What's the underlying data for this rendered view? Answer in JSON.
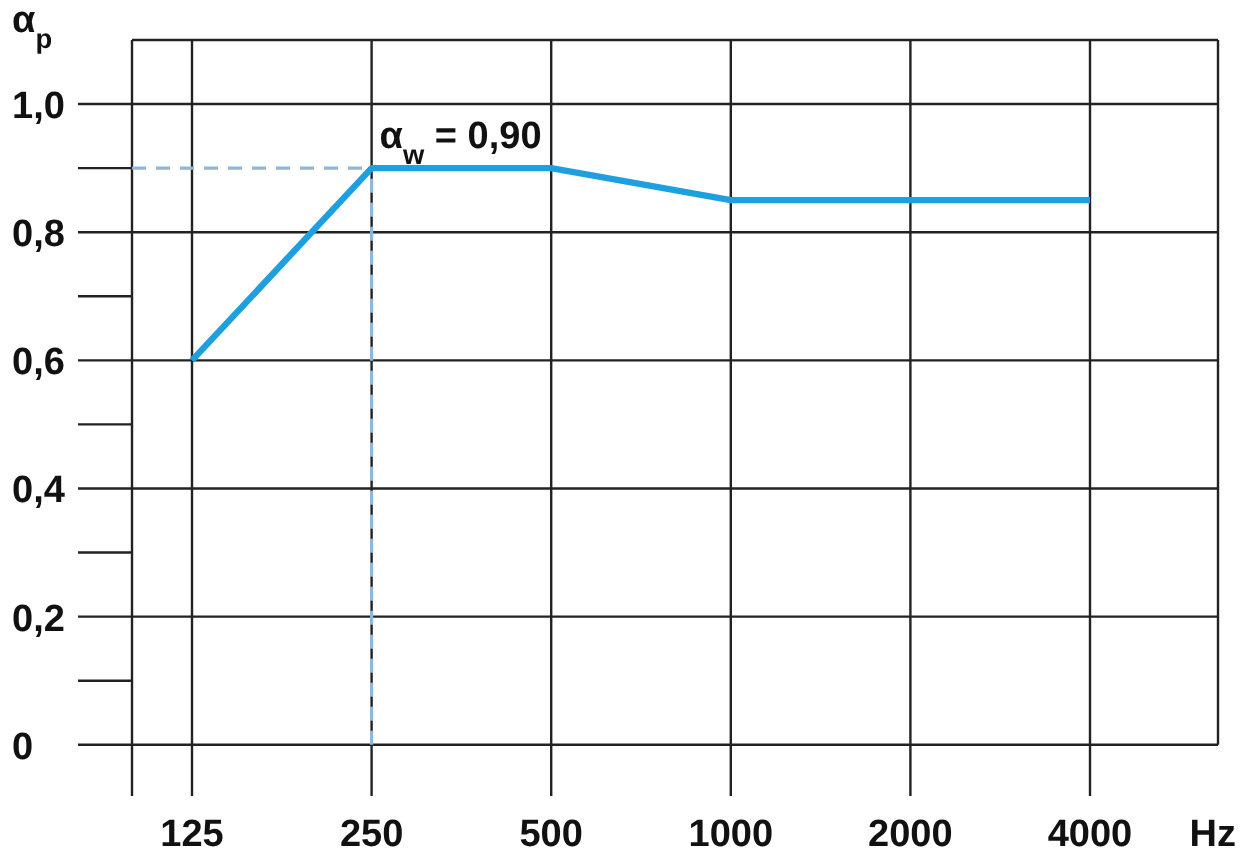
{
  "chart_data": {
    "type": "line",
    "ylabel": "α$_{p}$",
    "xlabel": "Hz",
    "categories": [
      "125",
      "250",
      "500",
      "1000",
      "2000",
      "4000"
    ],
    "series": [
      {
        "color": "#1ea0e0",
        "values": [
          0.6,
          0.9,
          0.9,
          0.85,
          0.85,
          0.85
        ]
      }
    ],
    "ylim": [
      -0.08,
      1.1
    ],
    "yticks": [
      {
        "value": 0,
        "label": "0"
      },
      {
        "value": 0.2,
        "label": "0,2"
      },
      {
        "value": 0.4,
        "label": "0,4"
      },
      {
        "value": 0.6,
        "label": "0,6"
      },
      {
        "value": 0.8,
        "label": "0,8"
      },
      {
        "value": 1.0,
        "label": "1,0"
      }
    ],
    "grid": true,
    "marker": "none",
    "line_style": "solid",
    "ref_lines": [
      {
        "axis": "y",
        "value": 0.9,
        "color": "#8fb8d8",
        "line_style": "dashed"
      },
      {
        "axis": "x",
        "value": "250",
        "color": "#8fb8d8",
        "line_style": "dashed"
      }
    ],
    "annotations": [
      {
        "text": "α$_{w}$ = 0,90",
        "x": "250",
        "y": 0.9
      }
    ]
  }
}
